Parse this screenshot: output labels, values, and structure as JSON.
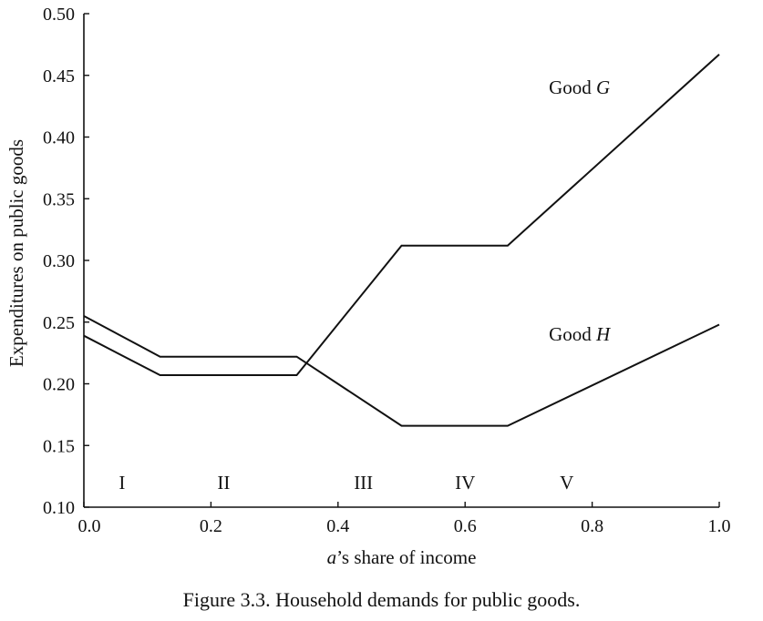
{
  "chart_data": {
    "type": "line",
    "title": "",
    "xlabel_italic": "a",
    "xlabel_rest": "’s share of income",
    "ylabel": "Expenditures on public goods",
    "xlim": [
      0,
      1.0
    ],
    "ylim": [
      0.1,
      0.5
    ],
    "x_ticks": [
      0.0,
      0.2,
      0.4,
      0.6,
      0.8,
      1.0
    ],
    "x_tick_labels": [
      "0.0",
      "0.2",
      "0.4",
      "0.6",
      "0.8",
      "1.0"
    ],
    "y_ticks": [
      0.1,
      0.15,
      0.2,
      0.25,
      0.3,
      0.35,
      0.4,
      0.45,
      0.5
    ],
    "y_tick_labels": [
      "0.10",
      "0.15",
      "0.20",
      "0.25",
      "0.30",
      "0.35",
      "0.40",
      "0.45",
      "0.50"
    ],
    "grid": false,
    "series": [
      {
        "key": "good-g",
        "label_prefix": "Good ",
        "label_italic": "G",
        "points": [
          [
            0.0,
            0.239
          ],
          [
            0.12,
            0.207
          ],
          [
            0.335,
            0.207
          ],
          [
            0.5,
            0.312
          ],
          [
            0.667,
            0.312
          ],
          [
            1.0,
            0.467
          ]
        ],
        "label_at": [
          0.78,
          0.435
        ]
      },
      {
        "key": "good-h",
        "label_prefix": "Good ",
        "label_italic": "H",
        "points": [
          [
            0.0,
            0.255
          ],
          [
            0.12,
            0.222
          ],
          [
            0.335,
            0.222
          ],
          [
            0.5,
            0.166
          ],
          [
            0.667,
            0.166
          ],
          [
            1.0,
            0.248
          ]
        ],
        "label_at": [
          0.78,
          0.235
        ]
      }
    ],
    "regions": [
      {
        "label": "I",
        "x": 0.06,
        "y": 0.12
      },
      {
        "label": "II",
        "x": 0.22,
        "y": 0.12
      },
      {
        "label": "III",
        "x": 0.44,
        "y": 0.12
      },
      {
        "label": "IV",
        "x": 0.6,
        "y": 0.12
      },
      {
        "label": "V",
        "x": 0.76,
        "y": 0.12
      }
    ]
  },
  "caption": "Figure  3.3.  Household demands for public goods."
}
